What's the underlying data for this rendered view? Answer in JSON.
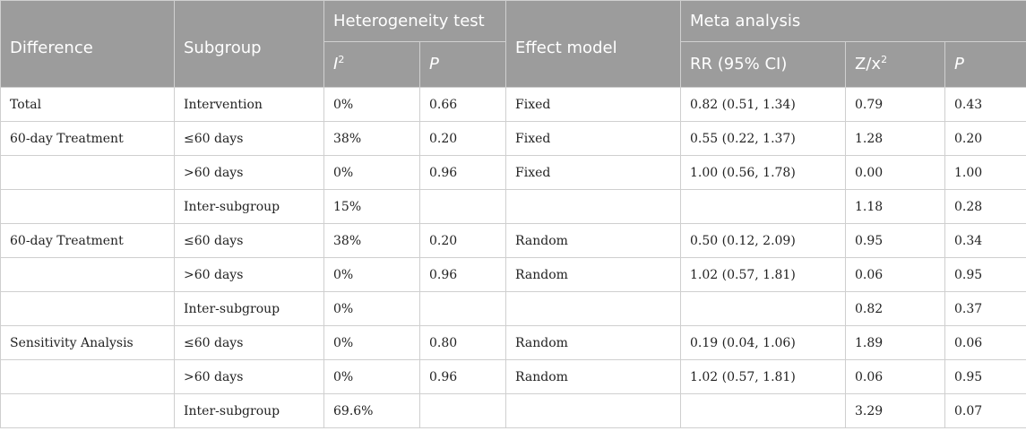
{
  "header": {
    "difference": "Difference",
    "subgroup": "Subgroup",
    "heterogeneity": "Heterogeneity test",
    "effect_model": "Effect model",
    "meta_analysis": "Meta analysis",
    "i2_letter": "I",
    "i2_sup": "2",
    "p1": "P",
    "rr": "RR (95% CI)",
    "z_label": "Z/x",
    "z_sup": "2",
    "p2": "P"
  },
  "rows": [
    {
      "difference": "Total",
      "subgroup": "Intervention",
      "i2": "0%",
      "p": "0.66",
      "model": "Fixed",
      "rr": "0.82 (0.51, 1.34)",
      "z": "0.79",
      "p2": "0.43"
    },
    {
      "difference": "60-day Treatment",
      "subgroup": "≤60 days",
      "i2": "38%",
      "p": "0.20",
      "model": "Fixed",
      "rr": "0.55 (0.22, 1.37)",
      "z": "1.28",
      "p2": "0.20"
    },
    {
      "difference": "",
      "subgroup": ">60 days",
      "i2": "0%",
      "p": "0.96",
      "model": "Fixed",
      "rr": "1.00 (0.56, 1.78)",
      "z": "0.00",
      "p2": "1.00"
    },
    {
      "difference": "",
      "subgroup": "Inter-subgroup",
      "i2": "15%",
      "p": "",
      "model": "",
      "rr": "",
      "z": "1.18",
      "p2": "0.28"
    },
    {
      "difference": "60-day Treatment",
      "subgroup": "≤60 days",
      "i2": "38%",
      "p": "0.20",
      "model": "Random",
      "rr": "0.50 (0.12, 2.09)",
      "z": "0.95",
      "p2": "0.34"
    },
    {
      "difference": "",
      "subgroup": ">60 days",
      "i2": "0%",
      "p": "0.96",
      "model": "Random",
      "rr": "1.02 (0.57, 1.81)",
      "z": "0.06",
      "p2": "0.95"
    },
    {
      "difference": "",
      "subgroup": "Inter-subgroup",
      "i2": "0%",
      "p": "",
      "model": "",
      "rr": "",
      "z": "0.82",
      "p2": "0.37"
    },
    {
      "difference": "Sensitivity Analysis",
      "subgroup": "≤60 days",
      "i2": "0%",
      "p": "0.80",
      "model": "Random",
      "rr": "0.19 (0.04, 1.06)",
      "z": "1.89",
      "p2": "0.06"
    },
    {
      "difference": "",
      "subgroup": ">60 days",
      "i2": "0%",
      "p": "0.96",
      "model": "Random",
      "rr": "1.02 (0.57, 1.81)",
      "z": "0.06",
      "p2": "0.95"
    },
    {
      "difference": "",
      "subgroup": "Inter-subgroup",
      "i2": "69.6%",
      "p": "",
      "model": "",
      "rr": "",
      "z": "3.29",
      "p2": "0.07"
    }
  ]
}
